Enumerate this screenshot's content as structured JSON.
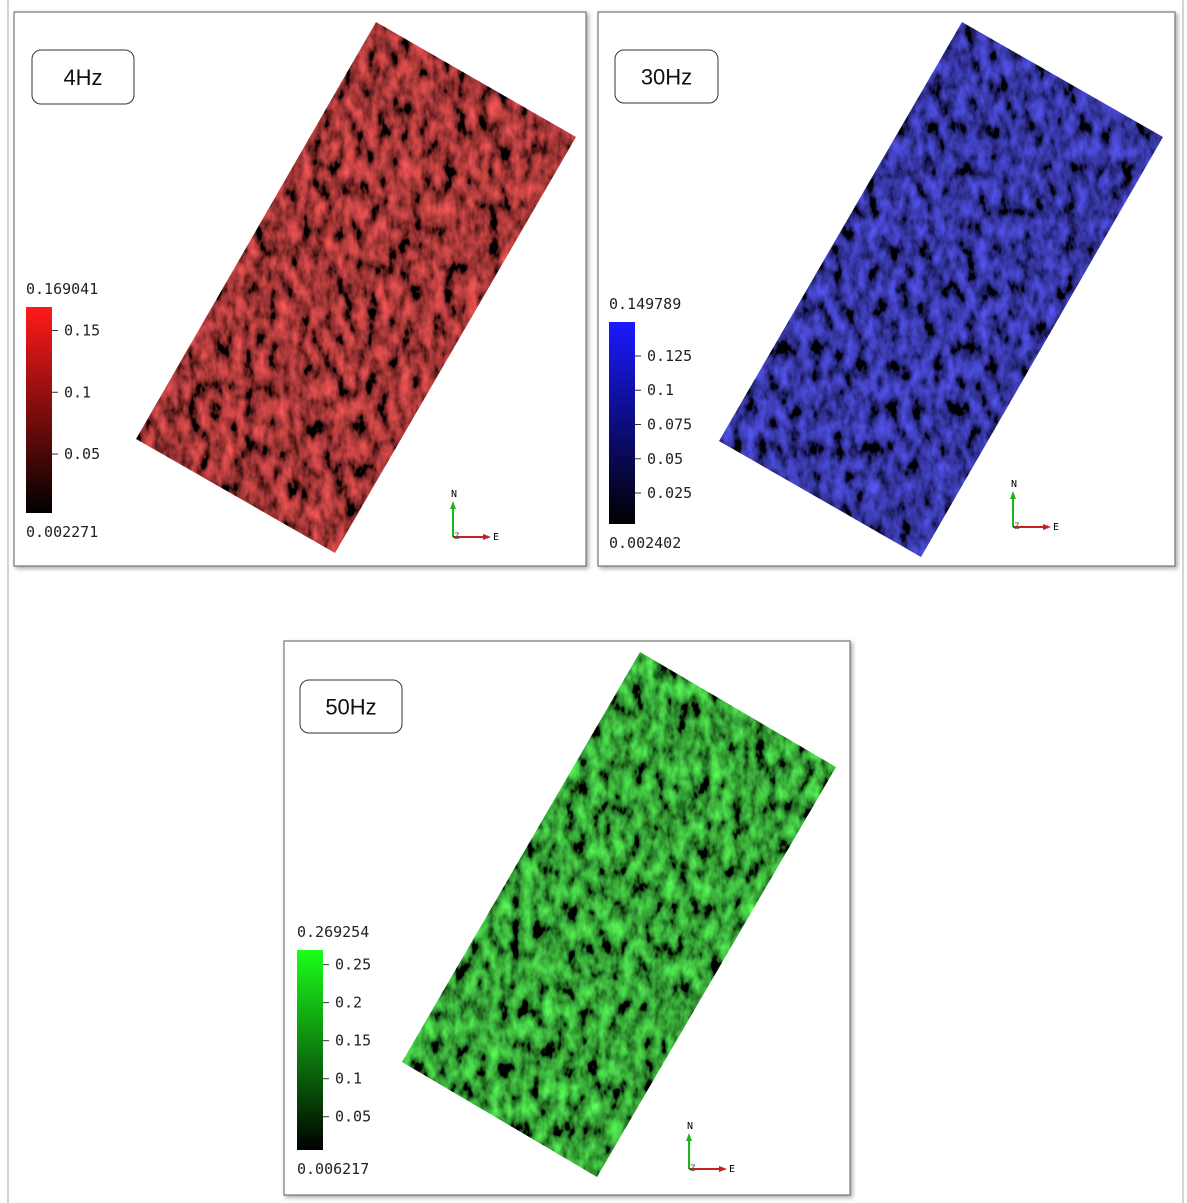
{
  "panels": [
    {
      "label": "4Hz",
      "color": "#ff1a1a",
      "colorbar": {
        "max": 0.169041,
        "min": 0.002271,
        "ticks": [
          0.15,
          0.1,
          0.05
        ]
      },
      "compass": {
        "n": "N",
        "e": "E",
        "z": "Z"
      }
    },
    {
      "label": "30Hz",
      "color": "#1a1aff",
      "colorbar": {
        "max": 0.149789,
        "min": 0.002402,
        "ticks": [
          0.125,
          0.1,
          0.075,
          0.05,
          0.025
        ]
      },
      "compass": {
        "n": "N",
        "e": "E",
        "z": "Z"
      }
    },
    {
      "label": "50Hz",
      "color": "#1aff1a",
      "colorbar": {
        "max": 0.269254,
        "min": 0.006217,
        "ticks": [
          0.25,
          0.2,
          0.15,
          0.1,
          0.05
        ]
      },
      "compass": {
        "n": "N",
        "e": "E",
        "z": "Z"
      }
    }
  ]
}
